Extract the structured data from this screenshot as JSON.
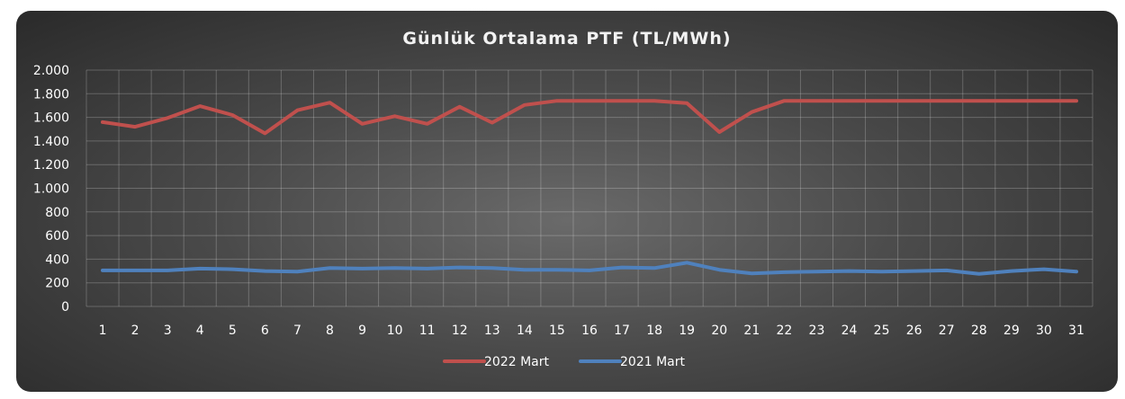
{
  "chart_data": {
    "type": "line",
    "title": "Günlük Ortalama PTF (TL/MWh)",
    "xlabel": "",
    "ylabel": "",
    "categories": [
      "1",
      "2",
      "3",
      "4",
      "5",
      "6",
      "7",
      "8",
      "9",
      "10",
      "11",
      "12",
      "13",
      "14",
      "15",
      "16",
      "17",
      "18",
      "19",
      "20",
      "21",
      "22",
      "23",
      "24",
      "25",
      "26",
      "27",
      "28",
      "29",
      "30",
      "31"
    ],
    "y_tick_labels": [
      "0",
      "200",
      "400",
      "600",
      "800",
      "1.000",
      "1.200",
      "1.400",
      "1.600",
      "1.800",
      "2.000"
    ],
    "y_tick_values": [
      0,
      200,
      400,
      600,
      800,
      1000,
      1200,
      1400,
      1600,
      1800,
      2000
    ],
    "ylim": [
      0,
      2000
    ],
    "grid": true,
    "legend_position": "bottom",
    "series": [
      {
        "name": "2022 Mart",
        "color": "#c0504d",
        "values": [
          1560,
          1520,
          1595,
          1695,
          1620,
          1465,
          1660,
          1725,
          1545,
          1610,
          1545,
          1690,
          1555,
          1705,
          1740,
          1740,
          1740,
          1740,
          1720,
          1475,
          1645,
          1740,
          1740,
          1740,
          1740,
          1740,
          1740,
          1740,
          1740,
          1740,
          1740
        ]
      },
      {
        "name": "2021 Mart",
        "color": "#4f81bd",
        "values": [
          305,
          305,
          305,
          320,
          315,
          300,
          295,
          325,
          320,
          325,
          320,
          330,
          325,
          310,
          310,
          305,
          330,
          325,
          370,
          310,
          280,
          290,
          295,
          300,
          295,
          300,
          305,
          275,
          300,
          315,
          295
        ]
      }
    ]
  }
}
